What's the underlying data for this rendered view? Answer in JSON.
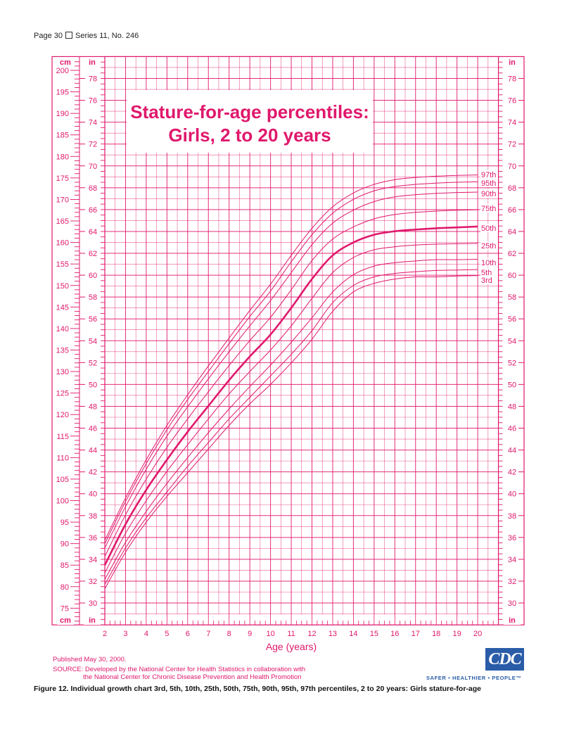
{
  "header": {
    "page": "Page 30",
    "series": "Series 11, No. 246"
  },
  "chart_data": {
    "type": "line",
    "title": "Stature-for-age percentiles:",
    "subtitle": "Girls, 2 to 20 years",
    "xlabel": "Age (years)",
    "ylabel_left": "cm",
    "ylabel_inch": "in",
    "xlim": [
      2,
      21
    ],
    "ylim_in": [
      28,
      80
    ],
    "x_ticks": [
      2,
      3,
      4,
      5,
      6,
      7,
      8,
      9,
      10,
      11,
      12,
      13,
      14,
      15,
      16,
      17,
      18,
      19,
      20
    ],
    "cm_ticks": [
      75,
      80,
      85,
      90,
      95,
      100,
      105,
      110,
      115,
      120,
      125,
      130,
      135,
      140,
      145,
      150,
      155,
      160,
      165,
      170,
      175,
      180,
      185,
      190,
      195,
      200
    ],
    "in_ticks": [
      30,
      32,
      34,
      36,
      38,
      40,
      42,
      44,
      46,
      48,
      50,
      52,
      54,
      56,
      58,
      60,
      62,
      64,
      66,
      68,
      70,
      72,
      74,
      76,
      78
    ],
    "x": [
      2,
      3,
      4,
      5,
      6,
      7,
      8,
      9,
      10,
      11,
      12,
      13,
      14,
      15,
      16,
      17,
      18,
      19,
      20
    ],
    "series": [
      {
        "name": "3rd",
        "values": [
          79.5,
          88,
          95,
          101,
          106.5,
          112,
          117.5,
          122.5,
          127,
          132,
          137.5,
          144,
          148.5,
          150.5,
          151.5,
          152,
          152,
          152.2,
          152.3
        ]
      },
      {
        "name": "5th",
        "values": [
          80.5,
          89,
          96,
          102,
          108,
          113.5,
          119,
          124,
          129,
          134,
          139.5,
          146,
          150,
          152,
          152.8,
          153.2,
          153.5,
          153.6,
          153.7
        ]
      },
      {
        "name": "10th",
        "values": [
          81.7,
          90.3,
          97.5,
          104,
          110,
          115.8,
          121.3,
          126.5,
          131.5,
          136.8,
          142.5,
          148.5,
          152.5,
          154.5,
          155.3,
          155.7,
          156,
          156,
          156.1
        ]
      },
      {
        "name": "25th",
        "values": [
          83.2,
          92.4,
          100,
          106.8,
          113,
          119,
          124.8,
          130,
          135,
          140.6,
          147,
          153,
          156.5,
          158.3,
          159,
          159.4,
          159.6,
          159.7,
          159.8
        ]
      },
      {
        "name": "50th",
        "values": [
          85,
          94.5,
          102.5,
          109.5,
          116,
          122,
          128,
          133.5,
          138.6,
          144.8,
          151.5,
          157,
          160,
          161.8,
          162.6,
          163,
          163.3,
          163.5,
          163.7
        ]
      },
      {
        "name": "75th",
        "values": [
          87,
          96.7,
          105,
          112.4,
          119,
          125.3,
          131.4,
          137.2,
          142.6,
          149,
          155.8,
          160.8,
          163.6,
          165.5,
          166.5,
          167,
          167.3,
          167.5,
          167.6
        ]
      },
      {
        "name": "90th",
        "values": [
          89,
          98.6,
          107.3,
          115,
          121.8,
          128.3,
          134.6,
          140.6,
          146.5,
          153,
          159.5,
          164.5,
          167.5,
          169.5,
          170.6,
          171.1,
          171.4,
          171.6,
          171.7
        ]
      },
      {
        "name": "95th",
        "values": [
          90,
          99.8,
          108.6,
          116.5,
          123.5,
          130,
          136.5,
          142.8,
          148.7,
          155.5,
          161.8,
          166.8,
          170,
          172,
          173,
          173.5,
          173.8,
          174,
          174.1
        ]
      },
      {
        "name": "97th",
        "values": [
          90.8,
          100.6,
          109.5,
          117.5,
          124.6,
          131.3,
          137.8,
          144.2,
          150.3,
          157,
          163.3,
          168.3,
          171.5,
          173.5,
          174.6,
          175.1,
          175.4,
          175.6,
          175.7
        ]
      }
    ],
    "units": "cm",
    "grid": true,
    "color": "#e0186c"
  },
  "footer": {
    "published": "Published May 30, 2000.",
    "source_line1": "SOURCE: Developed by the National Center for Health Statistics in collaboration with",
    "source_line2": "the National Center for Chronic Disease Prevention and Health Promotion",
    "logo": "CDC",
    "tagline": "SAFER • HEALTHIER • PEOPLE™"
  },
  "caption": "Figure 12. Individual growth chart 3rd, 5th, 10th, 25th, 50th, 75th, 90th, 95th, 97th percentiles, 2 to 20 years: Girls stature-for-age"
}
